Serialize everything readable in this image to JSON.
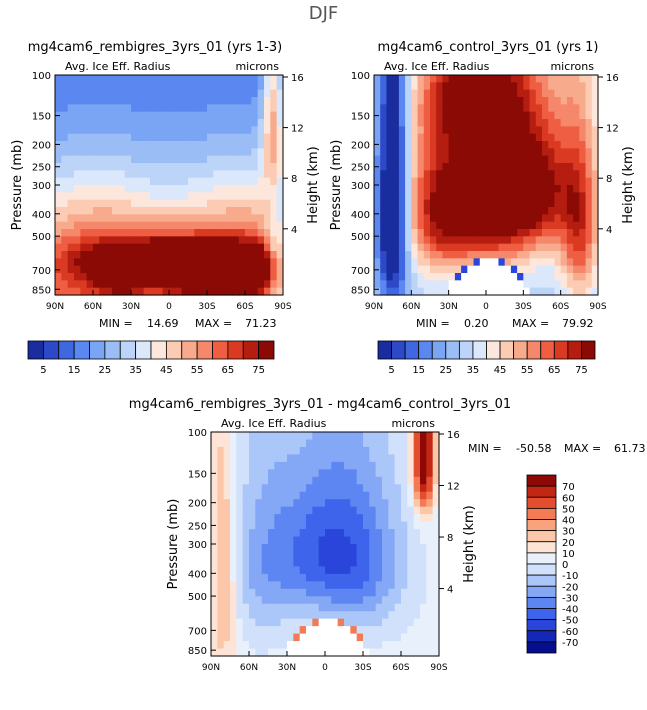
{
  "page_title": "DJF",
  "colors": {
    "scale_a": [
      "#1a2d9e",
      "#2e49c8",
      "#3f67e0",
      "#5a87f0",
      "#7aa4f4",
      "#9bbdf6",
      "#bcd4f8",
      "#dbe7fa",
      "#fde7dc",
      "#fbcbb3",
      "#f8ab8c",
      "#f5876a",
      "#ef5e43",
      "#db3a22",
      "#b41d10",
      "#8b0a05"
    ],
    "scale_b": [
      "#050e8c",
      "#1428b8",
      "#2a46da",
      "#3f64ec",
      "#5e86f2",
      "#84a8f6",
      "#abc7fa",
      "#d1e1fc",
      "#e8f1fb",
      "#fde4d6",
      "#fbc7a8",
      "#f8a37c",
      "#f27a54",
      "#e24e2e",
      "#c22714",
      "#8e0808"
    ]
  },
  "chart_data": [
    {
      "id": "panel-a",
      "type": "heatmap",
      "title": "mg4cam6_rembigres_3yrs_01 (yrs 1-3)",
      "variable": "Avg. Ice Eff. Radius",
      "units": "microns",
      "ylabel": "Pressure (mb)",
      "y2label": "Height (km)",
      "xticks": [
        "90N",
        "60N",
        "30N",
        "0",
        "30S",
        "60S",
        "90S"
      ],
      "yticks": [
        "100",
        "150",
        "200",
        "250",
        "300",
        "400",
        "500",
        "700",
        "850"
      ],
      "y2ticks": [
        "16",
        "12",
        "8",
        "4"
      ],
      "stats": {
        "min_label": "MIN =",
        "min": "14.69",
        "max_label": "MAX =",
        "max": "71.23"
      },
      "colorbar_labels": [
        "5",
        "15",
        "25",
        "35",
        "45",
        "55",
        "65",
        "75"
      ],
      "blobs": [
        {
          "lat": 60,
          "p": 450,
          "sx": 60,
          "sp": 300,
          "v": 4
        },
        {
          "lat": -60,
          "p": 450,
          "sx": 60,
          "sp": 300,
          "v": 4
        },
        {
          "lat": 0,
          "p": 650,
          "sx": 70,
          "sp": 150,
          "v": 10
        },
        {
          "lat": -55,
          "p": 720,
          "sx": 25,
          "sp": 130,
          "v": 12
        },
        {
          "lat": -20,
          "p": 760,
          "sx": 20,
          "sp": 100,
          "v": 5
        },
        {
          "lat": 40,
          "p": 780,
          "sx": 18,
          "sp": 90,
          "v": 5
        },
        {
          "lat": -85,
          "p": 700,
          "sx": 8,
          "sp": 300,
          "v": -5
        },
        {
          "lat": -82,
          "p": 150,
          "sx": 8,
          "sp": 150,
          "v": 6
        }
      ],
      "base": 1.8,
      "grow": 0.1,
      "mask": "none"
    },
    {
      "id": "panel-b",
      "type": "heatmap",
      "title": "mg4cam6_control_3yrs_01 (yrs 1)",
      "variable": "Avg. Ice Eff. Radius",
      "units": "microns",
      "ylabel": "Pressure (mb)",
      "y2label": "Height (km)",
      "xticks": [
        "90N",
        "60N",
        "30N",
        "0",
        "30S",
        "60S",
        "90S"
      ],
      "yticks": [
        "100",
        "150",
        "200",
        "250",
        "300",
        "400",
        "500",
        "700",
        "850"
      ],
      "y2ticks": [
        "16",
        "12",
        "8",
        "4"
      ],
      "stats": {
        "min_label": "MIN =",
        "min": "0.20",
        "max_label": "MAX =",
        "max": "79.92"
      },
      "colorbar_labels": [
        "5",
        "15",
        "25",
        "35",
        "45",
        "55",
        "65",
        "75"
      ],
      "blobs": [
        {
          "lat": 0,
          "p": 350,
          "sx": 50,
          "sp": 300,
          "v": 10
        },
        {
          "lat": -40,
          "p": 300,
          "sx": 35,
          "sp": 200,
          "v": 6
        },
        {
          "lat": 40,
          "p": 400,
          "sx": 25,
          "sp": 300,
          "v": 4
        },
        {
          "lat": -75,
          "p": 500,
          "sx": 15,
          "sp": 400,
          "v": 6
        },
        {
          "lat": 10,
          "p": 120,
          "sx": 35,
          "sp": 60,
          "v": 6
        },
        {
          "lat": 75,
          "p": 400,
          "sx": 12,
          "sp": 500,
          "v": -10
        }
      ],
      "base": 6.0,
      "grow": 0.0,
      "mask": "white-dome-red"
    },
    {
      "id": "panel-diff",
      "type": "heatmap",
      "title": "mg4cam6_rembigres_3yrs_01 - mg4cam6_control_3yrs_01",
      "variable": "Avg. Ice Eff. Radius",
      "units": "microns",
      "ylabel": "Pressure (mb)",
      "y2label": "Height (km)",
      "xticks": [
        "90N",
        "60N",
        "30N",
        "0",
        "30S",
        "60S",
        "90S"
      ],
      "yticks": [
        "100",
        "150",
        "200",
        "250",
        "300",
        "400",
        "500",
        "700",
        "850"
      ],
      "y2ticks": [
        "16",
        "12",
        "8",
        "4"
      ],
      "stats": {
        "min_label": "MIN =",
        "min": "-50.58",
        "max_label": "MAX =",
        "max": "61.73"
      },
      "colorbar_labels": [
        "70",
        "60",
        "50",
        "40",
        "30",
        "20",
        "10",
        "0",
        "-10",
        "-20",
        "-30",
        "-40",
        "-50",
        "-60",
        "-70"
      ],
      "blobs": [
        {
          "lat": 0,
          "p": 320,
          "sx": 45,
          "sp": 250,
          "v": -5
        },
        {
          "lat": -35,
          "p": 400,
          "sx": 35,
          "sp": 350,
          "v": -2
        },
        {
          "lat": 50,
          "p": 400,
          "sx": 25,
          "sp": 400,
          "v": -2
        },
        {
          "lat": -78,
          "p": 130,
          "sx": 8,
          "sp": 80,
          "v": 9
        },
        {
          "lat": 80,
          "p": 450,
          "sx": 10,
          "sp": 500,
          "v": 3
        }
      ],
      "base": 8.0,
      "grow": 0.0,
      "mask": "white-dome-blue"
    }
  ]
}
